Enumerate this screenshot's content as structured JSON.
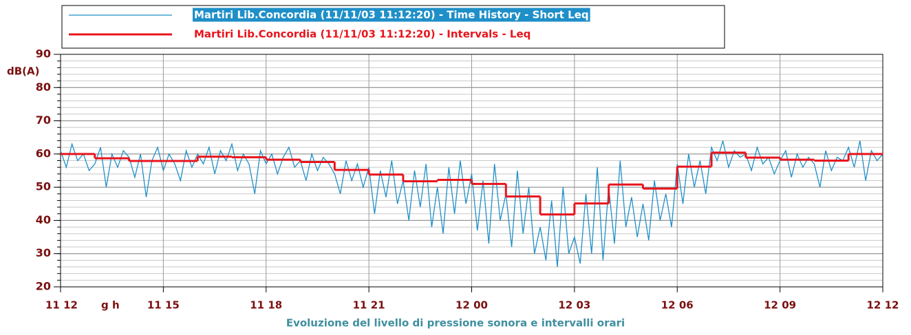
{
  "chart_data": {
    "type": "line",
    "title": "Evoluzione del livello di pressione sonora e intervalli orari",
    "ylabel": "dB(A)",
    "x_unit_label": "g h",
    "xlim": [
      0,
      1440
    ],
    "xticks": [
      {
        "value": 0,
        "label": "11 12"
      },
      {
        "value": 180,
        "label": "11 15"
      },
      {
        "value": 360,
        "label": "11 18"
      },
      {
        "value": 540,
        "label": "11 21"
      },
      {
        "value": 720,
        "label": "12 00"
      },
      {
        "value": 900,
        "label": "12 03"
      },
      {
        "value": 1080,
        "label": "12 06"
      },
      {
        "value": 1260,
        "label": "12 09"
      },
      {
        "value": 1440,
        "label": "12 12"
      }
    ],
    "ylim": [
      20,
      90
    ],
    "yticks": [
      20,
      30,
      40,
      50,
      60,
      70,
      80,
      90
    ],
    "minor_grid_step": 2,
    "grid": true,
    "series": [
      {
        "name": "Martiri Lib.Concordia (11/11/03 11:12:20) - Time History - Short Leq",
        "color": "#1f8fc8",
        "x": [
          0,
          10,
          20,
          30,
          40,
          50,
          60,
          70,
          80,
          90,
          100,
          110,
          120,
          130,
          140,
          150,
          160,
          170,
          180,
          190,
          200,
          210,
          220,
          230,
          240,
          250,
          260,
          270,
          280,
          290,
          300,
          310,
          320,
          330,
          340,
          350,
          360,
          370,
          380,
          390,
          400,
          410,
          420,
          430,
          440,
          450,
          460,
          470,
          480,
          490,
          500,
          510,
          520,
          530,
          540,
          550,
          560,
          570,
          580,
          590,
          600,
          610,
          620,
          630,
          640,
          650,
          660,
          670,
          680,
          690,
          700,
          710,
          720,
          730,
          740,
          750,
          760,
          770,
          780,
          790,
          800,
          810,
          820,
          830,
          840,
          850,
          860,
          870,
          880,
          890,
          900,
          910,
          920,
          930,
          940,
          950,
          960,
          970,
          980,
          990,
          1000,
          1010,
          1020,
          1030,
          1040,
          1050,
          1060,
          1070,
          1080,
          1090,
          1100,
          1110,
          1120,
          1130,
          1140,
          1150,
          1160,
          1170,
          1180,
          1190,
          1200,
          1210,
          1220,
          1230,
          1240,
          1250,
          1260,
          1270,
          1280,
          1290,
          1300,
          1310,
          1320,
          1330,
          1340,
          1350,
          1360,
          1370,
          1380,
          1390,
          1400,
          1410,
          1420,
          1430,
          1440
        ],
        "values": [
          61,
          56,
          63,
          58,
          60,
          55,
          57,
          62,
          50,
          60,
          56,
          61,
          59,
          53,
          60,
          47,
          58,
          62,
          55,
          60,
          57,
          52,
          61,
          56,
          60,
          57,
          62,
          54,
          61,
          58,
          63,
          55,
          60,
          57,
          48,
          61,
          57,
          60,
          54,
          59,
          62,
          56,
          58,
          52,
          60,
          55,
          59,
          57,
          54,
          48,
          58,
          52,
          57,
          50,
          56,
          42,
          55,
          47,
          58,
          45,
          52,
          40,
          55,
          44,
          57,
          38,
          50,
          36,
          56,
          42,
          58,
          45,
          54,
          37,
          52,
          33,
          57,
          40,
          48,
          32,
          55,
          36,
          50,
          30,
          38,
          28,
          46,
          26,
          50,
          30,
          35,
          27,
          48,
          30,
          56,
          28,
          50,
          33,
          58,
          38,
          47,
          35,
          45,
          34,
          52,
          40,
          48,
          38,
          57,
          45,
          60,
          50,
          58,
          48,
          62,
          58,
          64,
          56,
          61,
          59,
          60,
          55,
          62,
          57,
          59,
          54,
          58,
          61,
          53,
          60,
          56,
          59,
          57,
          50,
          61,
          55,
          59,
          58,
          62,
          56,
          64,
          52,
          61,
          58,
          60
        ]
      },
      {
        "name": "Martiri Lib.Concordia (11/11/03 11:12:20) - Intervals - Leq",
        "color": "#e8141c",
        "step": true,
        "bins": [
          0,
          60,
          120,
          180,
          240,
          300,
          360,
          420,
          480,
          540,
          600,
          660,
          720,
          780,
          840,
          900,
          960,
          1020,
          1080,
          1140,
          1200,
          1260,
          1320,
          1380,
          1440
        ],
        "values": [
          60,
          58.7,
          57.9,
          57.9,
          59.2,
          59,
          58.3,
          57.6,
          55.2,
          53.8,
          51.8,
          52.2,
          51,
          47.2,
          41.8,
          45.1,
          50.8,
          49.6,
          56.2,
          60.4,
          58.9,
          58.3,
          58,
          60
        ]
      }
    ]
  }
}
